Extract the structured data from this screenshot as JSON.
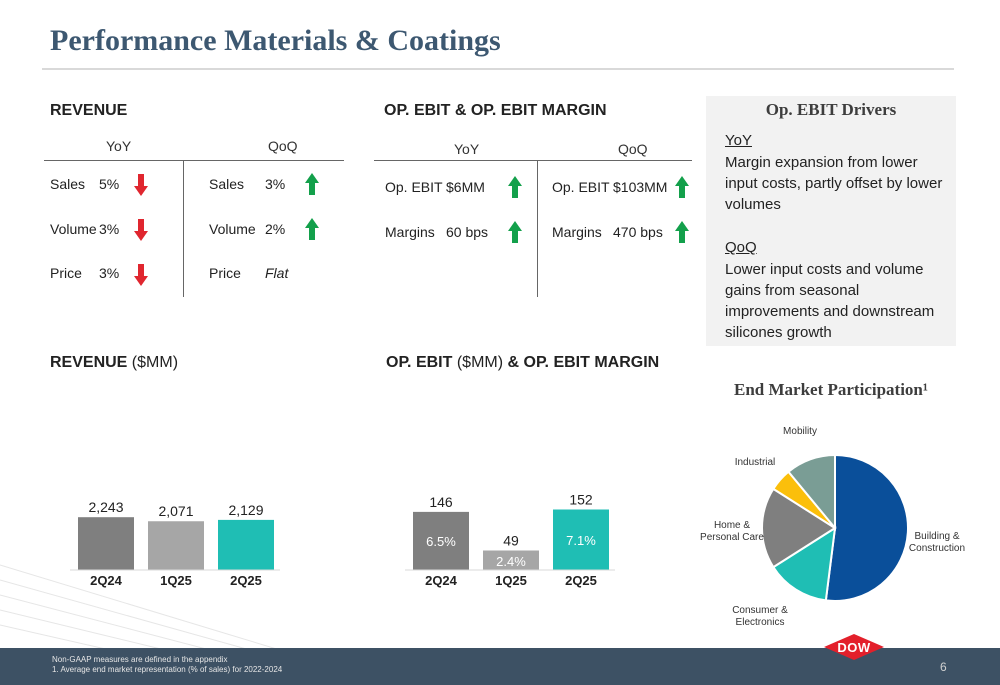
{
  "title": "Performance Materials & Coatings",
  "revenue_section": {
    "heading": "REVENUE",
    "yoy_label": "YoY",
    "qoq_label": "QoQ",
    "yoy_rows": [
      {
        "label": "Sales",
        "value": "5%",
        "direction": "down"
      },
      {
        "label": "Volume",
        "value": "3%",
        "direction": "down"
      },
      {
        "label": "Price",
        "value": "3%",
        "direction": "down"
      }
    ],
    "qoq_rows": [
      {
        "label": "Sales",
        "value": "3%",
        "direction": "up"
      },
      {
        "label": "Volume",
        "value": "2%",
        "direction": "up"
      },
      {
        "label": "Price",
        "value": "Flat",
        "direction": "none"
      }
    ]
  },
  "ebit_section": {
    "heading": "OP. EBIT & OP. EBIT MARGIN",
    "yoy_label": "YoY",
    "qoq_label": "QoQ",
    "yoy_rows": [
      {
        "label": "Op. EBIT",
        "value": "$6MM",
        "direction": "up"
      },
      {
        "label": "Margins",
        "value": "60 bps",
        "direction": "up"
      }
    ],
    "qoq_rows": [
      {
        "label": "Op. EBIT",
        "value": "$103MM",
        "direction": "up"
      },
      {
        "label": "Margins",
        "value": "470 bps",
        "direction": "up"
      }
    ]
  },
  "drivers": {
    "title": "Op. EBIT Drivers",
    "yoy_heading": "YoY",
    "yoy_text": "Margin expansion from lower input costs, partly offset by lower volumes",
    "qoq_heading": "QoQ",
    "qoq_text": "Lower input costs and volume gains from seasonal improvements and downstream silicones growth"
  },
  "revenue_chart_heading": {
    "bold": "REVENUE",
    "light": " ($MM)"
  },
  "ebit_chart_heading": {
    "bold1": "OP. EBIT",
    "light": " ($MM)",
    "bold2": " & OP. EBIT MARGIN"
  },
  "end_market_title": "End Market Participation¹",
  "colors": {
    "navy": "#3d5871",
    "bar_dark": "#7f7f7f",
    "bar_light": "#a6a6a6",
    "teal": "#1fbeb4",
    "arrow_down": "#e0262f",
    "arrow_up": "#13a04b",
    "pie_building": "#0a4f9a",
    "pie_consumer": "#1fbeb4",
    "pie_home": "#7f7f7f",
    "pie_industrial": "#fbbf0b",
    "pie_mobility": "#7a9d95",
    "footer": "#3d5164",
    "dow_red": "#e3202b"
  },
  "chart_data": [
    {
      "type": "bar",
      "categories": [
        "2Q24",
        "1Q25",
        "2Q25"
      ],
      "values": [
        2243,
        2071,
        2129
      ],
      "value_labels": [
        "2,243",
        "2,071",
        "2,129"
      ],
      "bar_colors": [
        "#7f7f7f",
        "#a6a6a6",
        "#1fbeb4"
      ]
    },
    {
      "type": "bar",
      "categories": [
        "2Q24",
        "1Q25",
        "2Q25"
      ],
      "values": [
        146,
        49,
        152
      ],
      "value_labels": [
        "146",
        "49",
        "152"
      ],
      "margins": [
        "6.5%",
        "2.4%",
        "7.1%"
      ],
      "bar_colors": [
        "#7f7f7f",
        "#a6a6a6",
        "#1fbeb4"
      ]
    },
    {
      "type": "pie",
      "slices": [
        {
          "label": "Building & Construction",
          "value": 52,
          "color": "#0a4f9a"
        },
        {
          "label": "Consumer & Electronics",
          "value": 14,
          "color": "#1fbeb4"
        },
        {
          "label": "Home & Personal Care",
          "value": 18,
          "color": "#7f7f7f"
        },
        {
          "label": "Industrial",
          "value": 5,
          "color": "#fbbf0b"
        },
        {
          "label": "Mobility",
          "value": 11,
          "color": "#7a9d95"
        }
      ]
    }
  ],
  "footer": {
    "note1": "Non-GAAP measures are defined in the appendix",
    "note2": "1. Average end market representation (% of sales) for 2022-2024",
    "page_number": "6",
    "logo_text": "DOW"
  }
}
